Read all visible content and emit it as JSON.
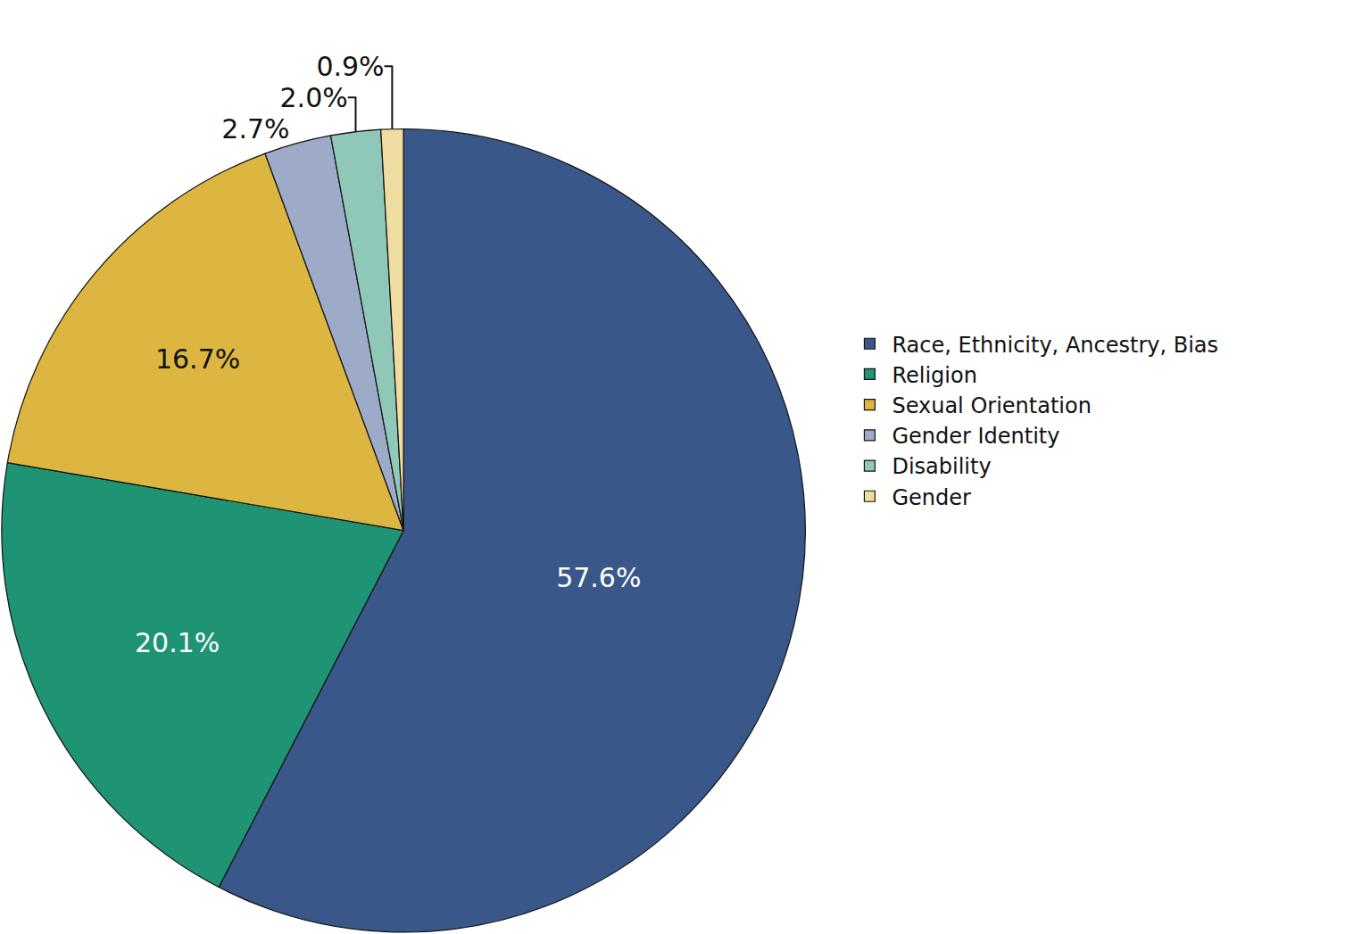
{
  "chart_data": {
    "type": "pie",
    "categories": [
      "Race, Ethnicity, Ancestry, Bias",
      "Religion",
      "Sexual Orientation",
      "Gender Identity",
      "Disability",
      "Gender"
    ],
    "values": [
      57.6,
      20.1,
      16.7,
      2.7,
      2.0,
      0.9
    ],
    "value_labels": [
      "57.6%",
      "20.1%",
      "16.7%",
      "2.7%",
      "2.0%",
      "0.9%"
    ],
    "colors": [
      "#3a5789",
      "#1e9474",
      "#dcb641",
      "#9eabc8",
      "#8fc7b9",
      "#eedca0"
    ],
    "data_labels": true,
    "legend": "right"
  }
}
